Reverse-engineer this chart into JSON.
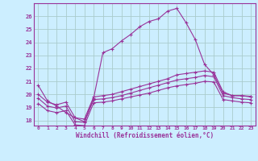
{
  "background_color": "#cceeff",
  "grid_color": "#aacccc",
  "line_color": "#993399",
  "xlabel": "Windchill (Refroidissement éolien,°C)",
  "x_ticks": [
    0,
    1,
    2,
    3,
    4,
    5,
    6,
    7,
    8,
    9,
    10,
    11,
    12,
    13,
    14,
    15,
    16,
    17,
    18,
    19,
    20,
    21,
    22,
    23
  ],
  "y_ticks": [
    18,
    19,
    20,
    21,
    22,
    23,
    24,
    25,
    26
  ],
  "xlim": [
    -0.5,
    23.5
  ],
  "ylim": [
    17.6,
    27.0
  ],
  "line1_x": [
    0,
    1,
    2,
    3,
    4,
    5,
    6,
    7,
    8,
    9,
    10,
    11,
    12,
    13,
    14,
    15,
    16,
    17,
    18,
    19,
    20,
    21,
    22,
    23
  ],
  "line1_y": [
    20.7,
    19.5,
    19.1,
    18.6,
    18.2,
    17.9,
    19.7,
    23.2,
    23.5,
    24.1,
    24.6,
    25.2,
    25.6,
    25.8,
    26.4,
    26.6,
    25.5,
    24.2,
    22.3,
    21.5,
    20.1,
    19.9,
    19.9,
    19.8
  ],
  "line2_x": [
    0,
    1,
    2,
    3,
    4,
    5,
    6,
    7,
    8,
    9,
    10,
    11,
    12,
    13,
    14,
    15,
    16,
    17,
    18,
    19,
    20,
    21,
    22,
    23
  ],
  "line2_y": [
    20.0,
    19.4,
    19.2,
    19.4,
    18.2,
    18.1,
    19.8,
    19.9,
    20.0,
    20.2,
    20.4,
    20.6,
    20.8,
    21.0,
    21.2,
    21.5,
    21.6,
    21.7,
    21.8,
    21.7,
    20.2,
    19.9,
    19.9,
    19.85
  ],
  "line3_x": [
    0,
    1,
    2,
    3,
    4,
    5,
    6,
    7,
    8,
    9,
    10,
    11,
    12,
    13,
    14,
    15,
    16,
    17,
    18,
    19,
    20,
    21,
    22,
    23
  ],
  "line3_y": [
    19.7,
    19.1,
    18.95,
    19.1,
    17.9,
    17.85,
    19.6,
    19.65,
    19.75,
    19.9,
    20.1,
    20.3,
    20.5,
    20.7,
    20.9,
    21.1,
    21.2,
    21.3,
    21.45,
    21.35,
    19.9,
    19.75,
    19.65,
    19.6
  ],
  "line4_x": [
    0,
    1,
    2,
    3,
    4,
    5,
    6,
    7,
    8,
    9,
    10,
    11,
    12,
    13,
    14,
    15,
    16,
    17,
    18,
    19,
    20,
    21,
    22,
    23
  ],
  "line4_y": [
    19.3,
    18.75,
    18.6,
    18.75,
    17.65,
    17.6,
    19.35,
    19.4,
    19.5,
    19.65,
    19.8,
    19.95,
    20.1,
    20.3,
    20.5,
    20.65,
    20.75,
    20.85,
    21.0,
    20.95,
    19.6,
    19.5,
    19.4,
    19.35
  ]
}
